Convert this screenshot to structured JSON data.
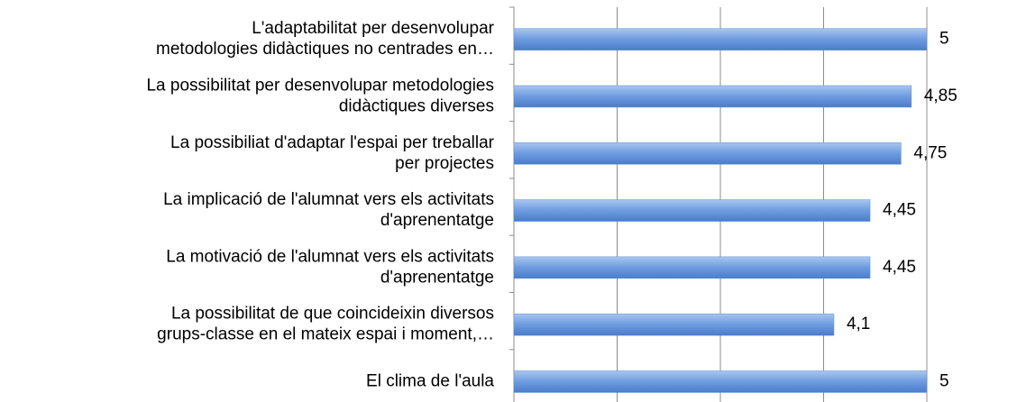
{
  "chart_data": {
    "type": "barh",
    "categories": [
      "L'adaptabilitat per desenvolupar\nmetodologies didàctiques no centrades en…",
      "La possibilitat per desenvolupar metodologies\ndidàctiques diverses",
      "La possibiliat d'adaptar l'espai per treballar\nper projectes",
      "La implicació de l'alumnat vers els activitats\nd'aprenentatge",
      "La motivació de l'alumnat vers els activitats\nd'aprenentatge",
      "La possibilitat de que coincideixin diversos\ngrups-classe en el mateix espai i moment,…",
      "El clima de l'aula"
    ],
    "values": [
      5,
      4.85,
      4.75,
      4.45,
      4.45,
      4.1,
      5
    ],
    "value_labels": [
      "5",
      "4,85",
      "4,75",
      "4,45",
      "4,45",
      "4,1",
      "5"
    ],
    "color": "#5b8fd6",
    "xlim": [
      1,
      5
    ],
    "xticks": [
      1,
      2,
      3,
      4,
      5
    ],
    "grid": true
  }
}
